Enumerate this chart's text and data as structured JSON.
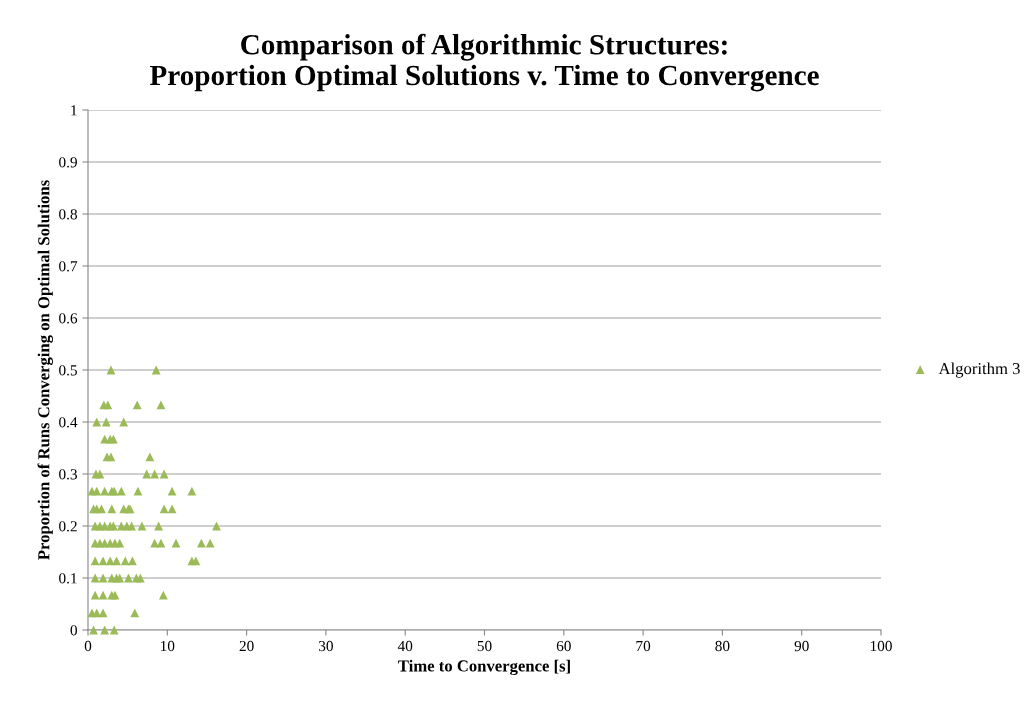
{
  "chart_data": {
    "type": "scatter",
    "title": "Comparison of Algorithmic Structures:\nProportion Optimal Solutions v. Time to Convergence",
    "xlabel": "Time to Convergence [s]",
    "ylabel": "Proportion of Runs Converging on Optimal Solutions",
    "series": [
      {
        "name": "Algorithm 3",
        "color": "#9bbb59",
        "x": [
          2.9,
          8.6,
          2.0,
          2.5,
          6.2,
          9.2,
          1.1,
          2.3,
          4.5,
          2.1,
          2.8,
          3.2,
          2.4,
          2.9,
          7.8,
          1.0,
          1.5,
          7.4,
          8.4,
          9.6,
          0.5,
          1.1,
          2.1,
          3.0,
          3.3,
          4.2,
          6.3,
          10.6,
          13.1,
          0.7,
          1.1,
          1.7,
          3.0,
          4.5,
          5.1,
          5.3,
          9.6,
          10.6,
          0.9,
          1.5,
          2.1,
          2.8,
          3.2,
          4.2,
          4.9,
          5.5,
          6.8,
          8.9,
          16.2,
          0.9,
          1.5,
          2.1,
          2.8,
          3.4,
          4.0,
          8.4,
          9.2,
          11.1,
          14.3,
          15.4,
          0.9,
          1.9,
          2.8,
          3.6,
          4.7,
          5.6,
          13.1,
          13.6,
          0.9,
          1.9,
          3.0,
          3.6,
          4.0,
          5.1,
          6.1,
          6.6,
          0.9,
          1.9,
          3.0,
          3.4,
          9.5,
          0.5,
          1.1,
          1.9,
          5.9,
          0.7,
          2.1,
          3.3
        ],
        "values": [
          0.5,
          0.5,
          0.433,
          0.433,
          0.433,
          0.433,
          0.4,
          0.4,
          0.4,
          0.367,
          0.367,
          0.367,
          0.333,
          0.333,
          0.333,
          0.3,
          0.3,
          0.3,
          0.3,
          0.3,
          0.267,
          0.267,
          0.267,
          0.267,
          0.267,
          0.267,
          0.267,
          0.267,
          0.267,
          0.233,
          0.233,
          0.233,
          0.233,
          0.233,
          0.233,
          0.233,
          0.233,
          0.233,
          0.2,
          0.2,
          0.2,
          0.2,
          0.2,
          0.2,
          0.2,
          0.2,
          0.2,
          0.2,
          0.2,
          0.167,
          0.167,
          0.167,
          0.167,
          0.167,
          0.167,
          0.167,
          0.167,
          0.167,
          0.167,
          0.167,
          0.133,
          0.133,
          0.133,
          0.133,
          0.133,
          0.133,
          0.133,
          0.133,
          0.1,
          0.1,
          0.1,
          0.1,
          0.1,
          0.1,
          0.1,
          0.1,
          0.067,
          0.067,
          0.067,
          0.067,
          0.067,
          0.033,
          0.033,
          0.033,
          0.033,
          0,
          0,
          0
        ]
      }
    ],
    "xlim": [
      0,
      100
    ],
    "xticks": [
      0,
      10,
      20,
      30,
      40,
      50,
      60,
      70,
      80,
      90,
      100
    ],
    "ylim": [
      0,
      1
    ],
    "yticks": [
      0,
      0.1,
      0.2,
      0.3,
      0.4,
      0.5,
      0.6,
      0.7,
      0.8,
      0.9,
      1
    ],
    "grid": "y",
    "legend": "right",
    "marker": "triangle"
  }
}
